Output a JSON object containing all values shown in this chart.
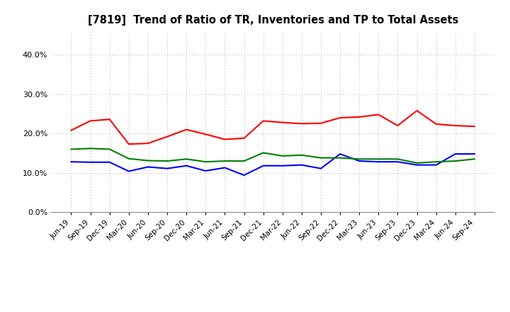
{
  "title": "[7819]  Trend of Ratio of TR, Inventories and TP to Total Assets",
  "x_labels": [
    "Jun-19",
    "Sep-19",
    "Dec-19",
    "Mar-20",
    "Jun-20",
    "Sep-20",
    "Dec-20",
    "Mar-21",
    "Jun-21",
    "Sep-21",
    "Dec-21",
    "Mar-22",
    "Jun-22",
    "Sep-22",
    "Dec-22",
    "Mar-23",
    "Jun-23",
    "Sep-23",
    "Dec-23",
    "Mar-24",
    "Jun-24",
    "Sep-24"
  ],
  "trade_receivables": [
    0.208,
    0.232,
    0.236,
    0.173,
    0.175,
    0.192,
    0.21,
    0.198,
    0.185,
    0.188,
    0.232,
    0.228,
    0.225,
    0.226,
    0.24,
    0.242,
    0.248,
    0.22,
    0.258,
    0.224,
    0.22,
    0.218
  ],
  "inventories": [
    0.128,
    0.127,
    0.127,
    0.104,
    0.115,
    0.111,
    0.118,
    0.105,
    0.113,
    0.094,
    0.118,
    0.118,
    0.12,
    0.111,
    0.148,
    0.13,
    0.128,
    0.128,
    0.12,
    0.12,
    0.148,
    0.148
  ],
  "trade_payables": [
    0.16,
    0.162,
    0.16,
    0.136,
    0.131,
    0.13,
    0.135,
    0.128,
    0.13,
    0.13,
    0.151,
    0.143,
    0.145,
    0.138,
    0.138,
    0.135,
    0.135,
    0.135,
    0.125,
    0.128,
    0.13,
    0.135
  ],
  "tr_color": "#FF0000",
  "inv_color": "#0000FF",
  "tp_color": "#008000",
  "ylim": [
    0.0,
    0.46
  ],
  "yticks": [
    0.0,
    0.1,
    0.2,
    0.3,
    0.4
  ],
  "background_color": "#FFFFFF",
  "grid_color": "#AAAAAA"
}
